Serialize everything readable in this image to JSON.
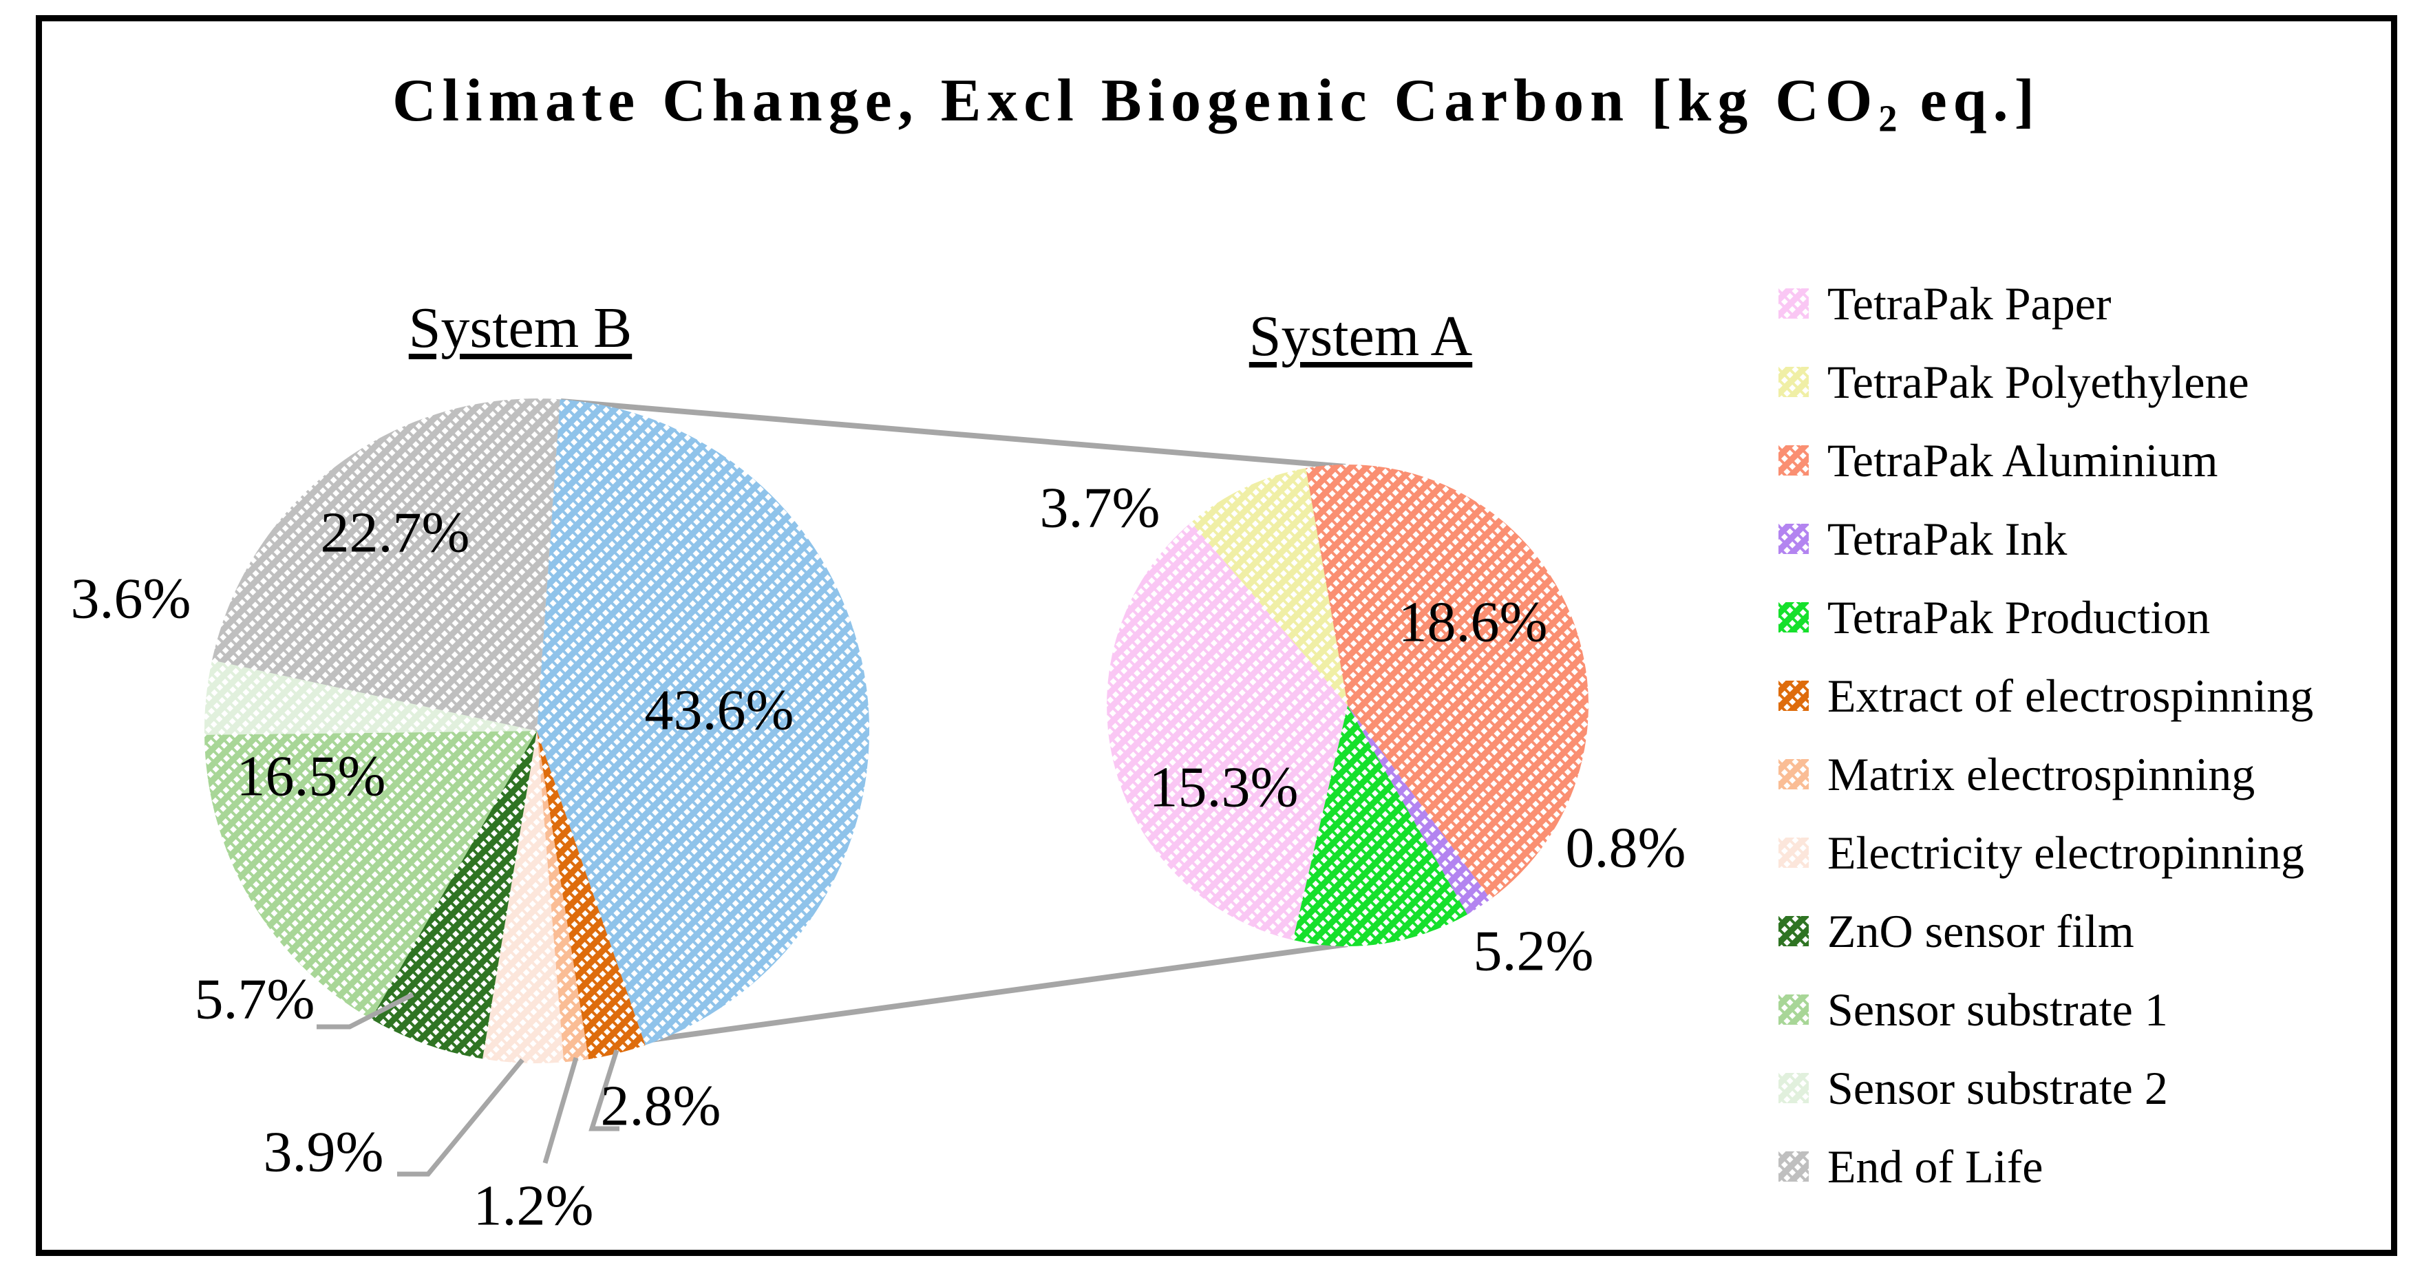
{
  "title": {
    "prefix": "Climate Change, Excl Biogenic Carbon [kg CO",
    "subscript": "2",
    "suffix": " eq.]"
  },
  "colors": {
    "system_a_expanded": "#8FC3EA",
    "leader_line": "#A6A6A6",
    "text": "#000000",
    "hatch": "#FFFFFF"
  },
  "chart_data": [
    {
      "type": "pie",
      "title": "System B",
      "units": "percent",
      "slices": [
        {
          "name": "System A",
          "value": 43.6,
          "label": "43.6%",
          "color": "#8FC3EA"
        },
        {
          "name": "Extract of electrospinning",
          "value": 2.8,
          "label": "2.8%",
          "color": "#DE6C0C"
        },
        {
          "name": "Matrix electrospinning",
          "value": 1.2,
          "label": "1.2%",
          "color": "#FABD95"
        },
        {
          "name": "Electricity electropinning",
          "value": 3.9,
          "label": "3.9%",
          "color": "#FCE6DB"
        },
        {
          "name": "ZnO sensor film",
          "value": 5.7,
          "label": "5.7%",
          "color": "#2F7423"
        },
        {
          "name": "Sensor substrate 1",
          "value": 16.5,
          "label": "16.5%",
          "color": "#A8D697"
        },
        {
          "name": "Sensor substrate 2",
          "value": 3.6,
          "label": "3.6%",
          "color": "#E1F0DD"
        },
        {
          "name": "End of Life",
          "value": 22.7,
          "label": "22.7%",
          "color": "#BFBFBF"
        }
      ]
    },
    {
      "type": "pie",
      "title": "System A",
      "units": "percent",
      "note": "expansion of the 43.6% slice of System B",
      "slices": [
        {
          "name": "TetraPak Aluminium",
          "value": 18.6,
          "label": "18.6%",
          "color": "#FA8F72"
        },
        {
          "name": "TetraPak Ink",
          "value": 0.8,
          "label": "0.8%",
          "color": "#B384F0"
        },
        {
          "name": "TetraPak Production",
          "value": 5.2,
          "label": "5.2%",
          "color": "#16E02C"
        },
        {
          "name": "TetraPak Paper",
          "value": 15.3,
          "label": "15.3%",
          "color": "#FAC7F4"
        },
        {
          "name": "TetraPak Polyethylene",
          "value": 3.7,
          "label": "3.7%",
          "color": "#F0EFA6"
        }
      ]
    }
  ],
  "legend": {
    "items": [
      {
        "label": "TetraPak Paper",
        "color": "#FAC7F4"
      },
      {
        "label": "TetraPak Polyethylene",
        "color": "#F0EFA6"
      },
      {
        "label": "TetraPak Aluminium",
        "color": "#FA8F72"
      },
      {
        "label": "TetraPak Ink",
        "color": "#B384F0"
      },
      {
        "label": "TetraPak Production",
        "color": "#16E02C"
      },
      {
        "label": "Extract of electrospinning",
        "color": "#DE6C0C"
      },
      {
        "label": "Matrix electrospinning",
        "color": "#FABD95"
      },
      {
        "label": "Electricity electropinning",
        "color": "#FCE6DB"
      },
      {
        "label": "ZnO sensor film",
        "color": "#2F7423"
      },
      {
        "label": "Sensor substrate 1",
        "color": "#A8D697"
      },
      {
        "label": "Sensor substrate 2",
        "color": "#E1F0DD"
      },
      {
        "label": "End of Life",
        "color": "#BFBFBF"
      }
    ]
  }
}
